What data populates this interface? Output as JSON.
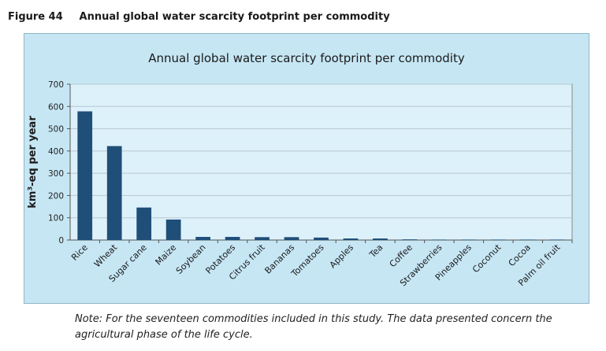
{
  "figure": {
    "number": "Figure 44",
    "caption": "Annual global water scarcity footprint per commodity"
  },
  "note": "Note: For the seventeen commodities included in this study. The data presented concern the agricultural phase of the life cycle.",
  "colors": {
    "bar": "#1f4e79",
    "plot_bg": "#dcf1fa",
    "frame_bg": "#c6e6f4"
  },
  "chart_data": {
    "type": "bar",
    "title": "Annual global water scarcity footprint per commodity",
    "xlabel": "",
    "ylabel": "km³-eq per year",
    "ylim": [
      0,
      700
    ],
    "yticks": [
      0,
      100,
      200,
      300,
      400,
      500,
      600,
      700
    ],
    "grid": true,
    "categories": [
      "Rice",
      "Wheat",
      "Sugar cane",
      "Maize",
      "Soybean",
      "Potatoes",
      "Citrus fruit",
      "Bananas",
      "Tomatoes",
      "Apples",
      "Tea",
      "Coffee",
      "Strawberries",
      "Pineapples",
      "Coconut",
      "Cocoa",
      "Palm oil fruit"
    ],
    "values": [
      578,
      422,
      146,
      92,
      14,
      14,
      13,
      13,
      11,
      7,
      7,
      3,
      2,
      2,
      2,
      2,
      2
    ]
  }
}
